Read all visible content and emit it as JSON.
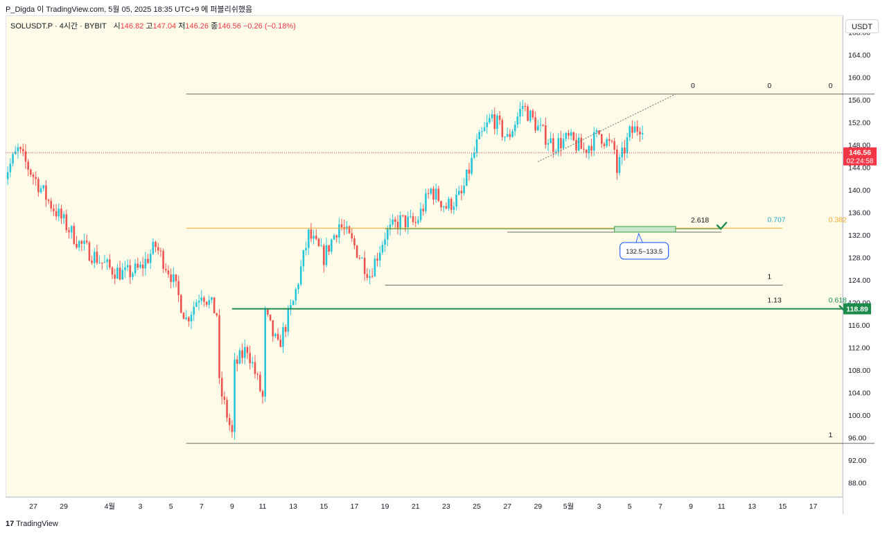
{
  "header": {
    "text": "P_Digda 이 TradingView.com, 5월 05, 2025 18:35 UTC+9 에 퍼블리쉬했음"
  },
  "legend": {
    "symbol": "SOLUSDT.P · 4시간 · BYBIT",
    "open_label": "시",
    "open": "146.82",
    "high_label": "고",
    "high": "147.04",
    "low_label": "저",
    "low": "146.26",
    "close_label": "종",
    "close": "146.56",
    "change": "−0.26 (−0.18%)"
  },
  "price_axis": {
    "unit": "USDT"
  },
  "footer": {
    "brand": "TradingView"
  },
  "colors": {
    "up": "#26c6da",
    "down": "#ef5350",
    "background": "#fefce8",
    "fib_orange": "#f9a825",
    "fib_green": "#43a047",
    "fib_bold": "#1b8a4a",
    "price_tag": "#f23645",
    "level_tag": "#1b8a4a",
    "fib_blue": "#26a6c9"
  },
  "chart_data": {
    "type": "candlestick",
    "symbol": "SOLUSDT.P",
    "interval": "4시간",
    "exchange": "BYBIT",
    "ylim": [
      85.5,
      171
    ],
    "y_ticks": [
      "168.00",
      "164.00",
      "160.00",
      "156.00",
      "152.00",
      "148.00",
      "144.00",
      "140.00",
      "136.00",
      "132.00",
      "128.00",
      "124.00",
      "120.00",
      "116.00",
      "112.00",
      "108.00",
      "104.00",
      "100.00",
      "96.00",
      "92.00",
      "88.00"
    ],
    "x_ticks": [
      "27",
      "29",
      "4월",
      "3",
      "5",
      "7",
      "9",
      "11",
      "13",
      "15",
      "17",
      "19",
      "21",
      "23",
      "25",
      "27",
      "29",
      "5월",
      "3",
      "5",
      "7",
      "9",
      "11",
      "13",
      "15",
      "17"
    ],
    "x_tick_dates": [
      "2025-03-27",
      "2025-03-29",
      "2025-04-01",
      "2025-04-03",
      "2025-04-05",
      "2025-04-07",
      "2025-04-09",
      "2025-04-11",
      "2025-04-13",
      "2025-04-15",
      "2025-04-17",
      "2025-04-19",
      "2025-04-21",
      "2025-04-23",
      "2025-04-25",
      "2025-04-27",
      "2025-04-29",
      "2025-05-01",
      "2025-05-03",
      "2025-05-05",
      "2025-05-07",
      "2025-05-09",
      "2025-05-11",
      "2025-05-13",
      "2025-05-15",
      "2025-05-17"
    ],
    "last_price": "146.56",
    "countdown": "02:24:58",
    "level_tag": "118.89",
    "anchors": [
      {
        "date": "2025-03-25",
        "price": 142.0
      },
      {
        "date": "2025-03-26",
        "price": 147.0
      },
      {
        "date": "2025-03-28",
        "price": 138.0
      },
      {
        "date": "2025-03-30",
        "price": 130.5
      },
      {
        "date": "2025-04-01",
        "price": 126.0
      },
      {
        "date": "2025-04-02",
        "price": 125.0
      },
      {
        "date": "2025-04-03",
        "price": 126.0
      },
      {
        "date": "2025-04-04",
        "price": 130.0
      },
      {
        "date": "2025-04-05",
        "price": 125.0
      },
      {
        "date": "2025-04-06",
        "price": 117.0
      },
      {
        "date": "2025-04-07",
        "price": 122.0
      },
      {
        "date": "2025-04-08",
        "price": 118.0
      },
      {
        "date": "2025-04-08",
        "price": 107.0
      },
      {
        "date": "2025-04-09",
        "price": 96.5
      },
      {
        "date": "2025-04-09",
        "price": 108.0
      },
      {
        "date": "2025-04-10",
        "price": 112.0
      },
      {
        "date": "2025-04-11",
        "price": 103.0
      },
      {
        "date": "2025-04-11",
        "price": 119.0
      },
      {
        "date": "2025-04-12",
        "price": 112.0
      },
      {
        "date": "2025-04-13",
        "price": 120.0
      },
      {
        "date": "2025-04-14",
        "price": 132.0
      },
      {
        "date": "2025-04-15",
        "price": 128.0
      },
      {
        "date": "2025-04-16",
        "price": 134.0
      },
      {
        "date": "2025-04-17",
        "price": 130.0
      },
      {
        "date": "2025-04-18",
        "price": 125.0
      },
      {
        "date": "2025-04-19",
        "price": 132.0
      },
      {
        "date": "2025-04-20",
        "price": 134.5
      },
      {
        "date": "2025-04-21",
        "price": 134.0
      },
      {
        "date": "2025-04-22",
        "price": 140.0
      },
      {
        "date": "2025-04-23",
        "price": 137.0
      },
      {
        "date": "2025-04-24",
        "price": 139.0
      },
      {
        "date": "2025-04-25",
        "price": 148.0
      },
      {
        "date": "2025-04-26",
        "price": 153.0
      },
      {
        "date": "2025-04-27",
        "price": 149.0
      },
      {
        "date": "2025-04-28",
        "price": 155.0
      },
      {
        "date": "2025-04-29",
        "price": 151.0
      },
      {
        "date": "2025-04-30",
        "price": 148.0
      },
      {
        "date": "2025-05-01",
        "price": 149.0
      },
      {
        "date": "2025-05-02",
        "price": 147.0
      },
      {
        "date": "2025-05-03",
        "price": 150.0
      },
      {
        "date": "2025-05-04",
        "price": 147.0
      },
      {
        "date": "2025-05-04",
        "price": 142.0
      },
      {
        "date": "2025-05-05",
        "price": 150.0
      },
      {
        "date": "2025-05-06",
        "price": 152.0
      },
      {
        "date": "2025-05-07",
        "price": 149.0
      },
      {
        "date": "2025-05-08",
        "price": 147.0
      },
      {
        "date": "2025-05-09",
        "price": 146.5
      }
    ],
    "fib_lines": [
      {
        "price": 157.0,
        "from": "2025-04-06",
        "to": "2025-05-21",
        "color": "#6b6b6b",
        "width": 1,
        "labels": [
          {
            "text": "0",
            "date": "2025-05-09",
            "color": "#131722"
          },
          {
            "text": "0",
            "date": "2025-05-14",
            "color": "#131722"
          },
          {
            "text": "0",
            "date": "2025-05-18",
            "color": "#131722"
          }
        ]
      },
      {
        "price": 133.2,
        "from": "2025-04-06",
        "to": "2025-05-15",
        "color": "#f9a825",
        "width": 1,
        "labels": [
          {
            "text": "0.707",
            "date": "2025-05-14",
            "color": "#26a6c9"
          },
          {
            "text": "0.382",
            "date": "2025-05-18",
            "color": "#f9a825"
          }
        ]
      },
      {
        "price": 133.1,
        "from": "2025-04-19",
        "to": "2025-05-11",
        "color": "#43a047",
        "width": 1,
        "labels": [
          {
            "text": "2.618",
            "date": "2025-05-09",
            "color": "#131722"
          }
        ]
      },
      {
        "price": 132.5,
        "from": "2025-04-27",
        "to": "2025-05-11",
        "color": "#6b6b6b",
        "width": 1,
        "labels": []
      },
      {
        "price": 123.1,
        "from": "2025-04-19",
        "to": "2025-05-15",
        "color": "#6b6b6b",
        "width": 1,
        "labels": [
          {
            "text": "1",
            "date": "2025-05-14",
            "color": "#131722"
          }
        ]
      },
      {
        "price": 118.9,
        "from": "2025-04-09",
        "to": "2025-05-20",
        "color": "#43a047",
        "width": 1,
        "labels": [
          {
            "text": "1.13",
            "date": "2025-05-14",
            "color": "#131722"
          },
          {
            "text": "0.618",
            "date": "2025-05-18",
            "color": "#1b8a4a"
          }
        ]
      },
      {
        "price": 95.0,
        "from": "2025-04-06",
        "to": "2025-05-21",
        "color": "#6b6b6b",
        "width": 1,
        "labels": [
          {
            "text": "1",
            "date": "2025-05-18",
            "color": "#131722"
          }
        ]
      }
    ],
    "zone": {
      "label": "132.5~133.5",
      "low": 132.5,
      "high": 133.5,
      "from": "2025-05-04",
      "to": "2025-05-08"
    },
    "trend_line": {
      "from": {
        "date": "2025-04-29",
        "price": 145.0
      },
      "to": {
        "date": "2025-05-08",
        "price": 157.0
      }
    },
    "checkmarks": [
      {
        "date": "2025-05-11",
        "price": 133.2
      },
      {
        "date": "2025-05-19",
        "price": 118.9
      }
    ]
  }
}
